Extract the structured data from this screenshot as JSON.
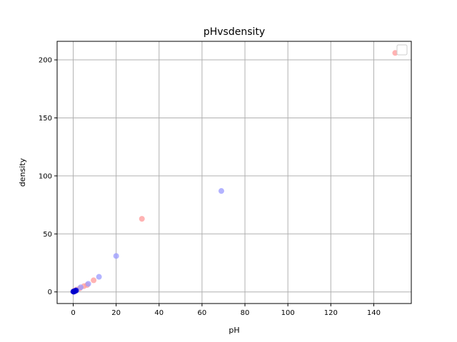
{
  "chart_data": {
    "type": "scatter",
    "title": "pHvsdensity",
    "xlabel": "pH",
    "ylabel": "density",
    "xlim": [
      -7.5,
      157.5
    ],
    "ylim": [
      -10,
      216
    ],
    "xticks": [
      0,
      20,
      40,
      60,
      80,
      100,
      120,
      140
    ],
    "yticks": [
      0,
      50,
      100,
      150,
      200
    ],
    "grid": true,
    "legend": "top-right",
    "series": [
      {
        "color": "#ff9999",
        "points": [
          {
            "x": 150,
            "y": 206
          },
          {
            "x": 32,
            "y": 63
          },
          {
            "x": 9.5,
            "y": 10
          },
          {
            "x": 6.5,
            "y": 6
          },
          {
            "x": 5,
            "y": 5
          },
          {
            "x": 3,
            "y": 3
          },
          {
            "x": 1.5,
            "y": 2
          },
          {
            "x": 0.5,
            "y": 1
          }
        ]
      },
      {
        "color": "#9999ff",
        "points": [
          {
            "x": 69,
            "y": 87
          },
          {
            "x": 20,
            "y": 31
          },
          {
            "x": 12,
            "y": 13
          },
          {
            "x": 7,
            "y": 7
          },
          {
            "x": 3.5,
            "y": 4
          },
          {
            "x": 1.5,
            "y": 1.5
          }
        ]
      },
      {
        "color": "#0000cc",
        "points": [
          {
            "x": 0,
            "y": 0.3
          },
          {
            "x": 0.5,
            "y": 0.6
          },
          {
            "x": 1,
            "y": 0.9
          },
          {
            "x": 0.3,
            "y": 0.2
          },
          {
            "x": 1.3,
            "y": 1.2
          }
        ]
      }
    ]
  }
}
